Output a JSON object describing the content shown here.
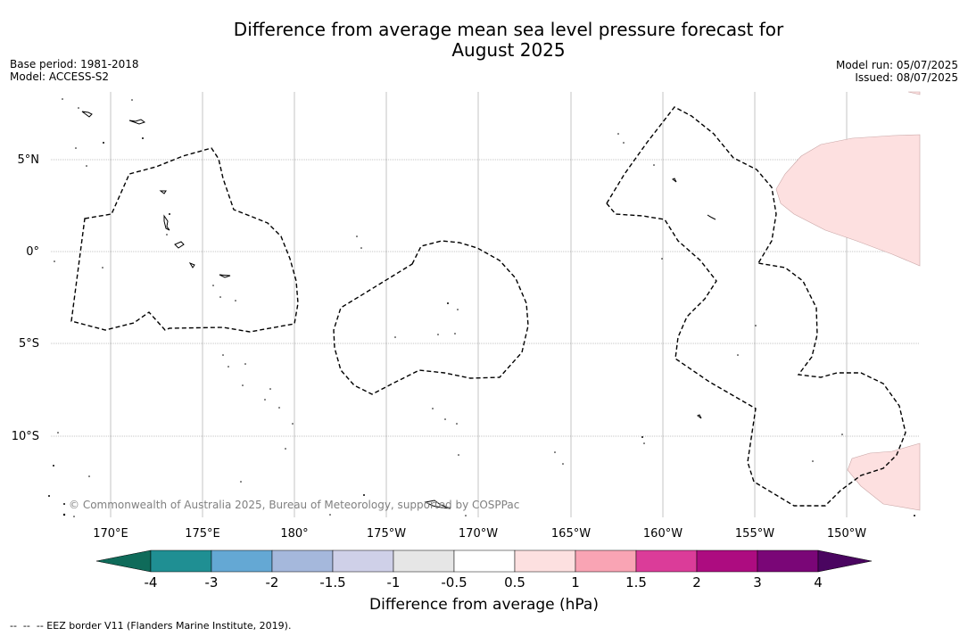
{
  "title_line1": "Difference from average mean sea level pressure forecast for",
  "title_line2": "August 2025",
  "base_period": "Base period: 1981-2018",
  "model": "Model: ACCESS-S2",
  "model_run": "Model run: 05/07/2025",
  "issued": "Issued: 08/07/2025",
  "copyright": "© Commonwealth of Australia 2025, Bureau of Meteorology, supported by COSPPac",
  "footnote": "--  --  -- EEZ border V11 (Flanders Marine Institute, 2019).",
  "map": {
    "lat_labels": [
      "5°N",
      "0°",
      "5°S",
      "10°S"
    ],
    "lon_labels": [
      "170°E",
      "175°E",
      "180°",
      "175°W",
      "170°W",
      "165°W",
      "160°W",
      "155°W",
      "150°W"
    ],
    "colors": {
      "anomaly_0p5_to_1": "#fde0e0",
      "coastline": "#000000",
      "eez_border": "#000000",
      "gridline": "#888888"
    }
  },
  "colorbar": {
    "label": "Difference from average (hPa)",
    "tick_labels": [
      "-4",
      "-3",
      "-2",
      "-1.5",
      "-1",
      "-0.5",
      "0.5",
      "1",
      "1.5",
      "2",
      "3",
      "4"
    ],
    "under_color": "#0f6b5a",
    "over_color": "#4a0560",
    "colors": [
      "#1f8f93",
      "#64a8d4",
      "#a5b8dc",
      "#cfd0e8",
      "#e6e6e6",
      "#ffffff",
      "#fde0e0",
      "#f9a4b4",
      "#db3c99",
      "#ad0c80",
      "#7a0677"
    ],
    "extend": "both"
  }
}
